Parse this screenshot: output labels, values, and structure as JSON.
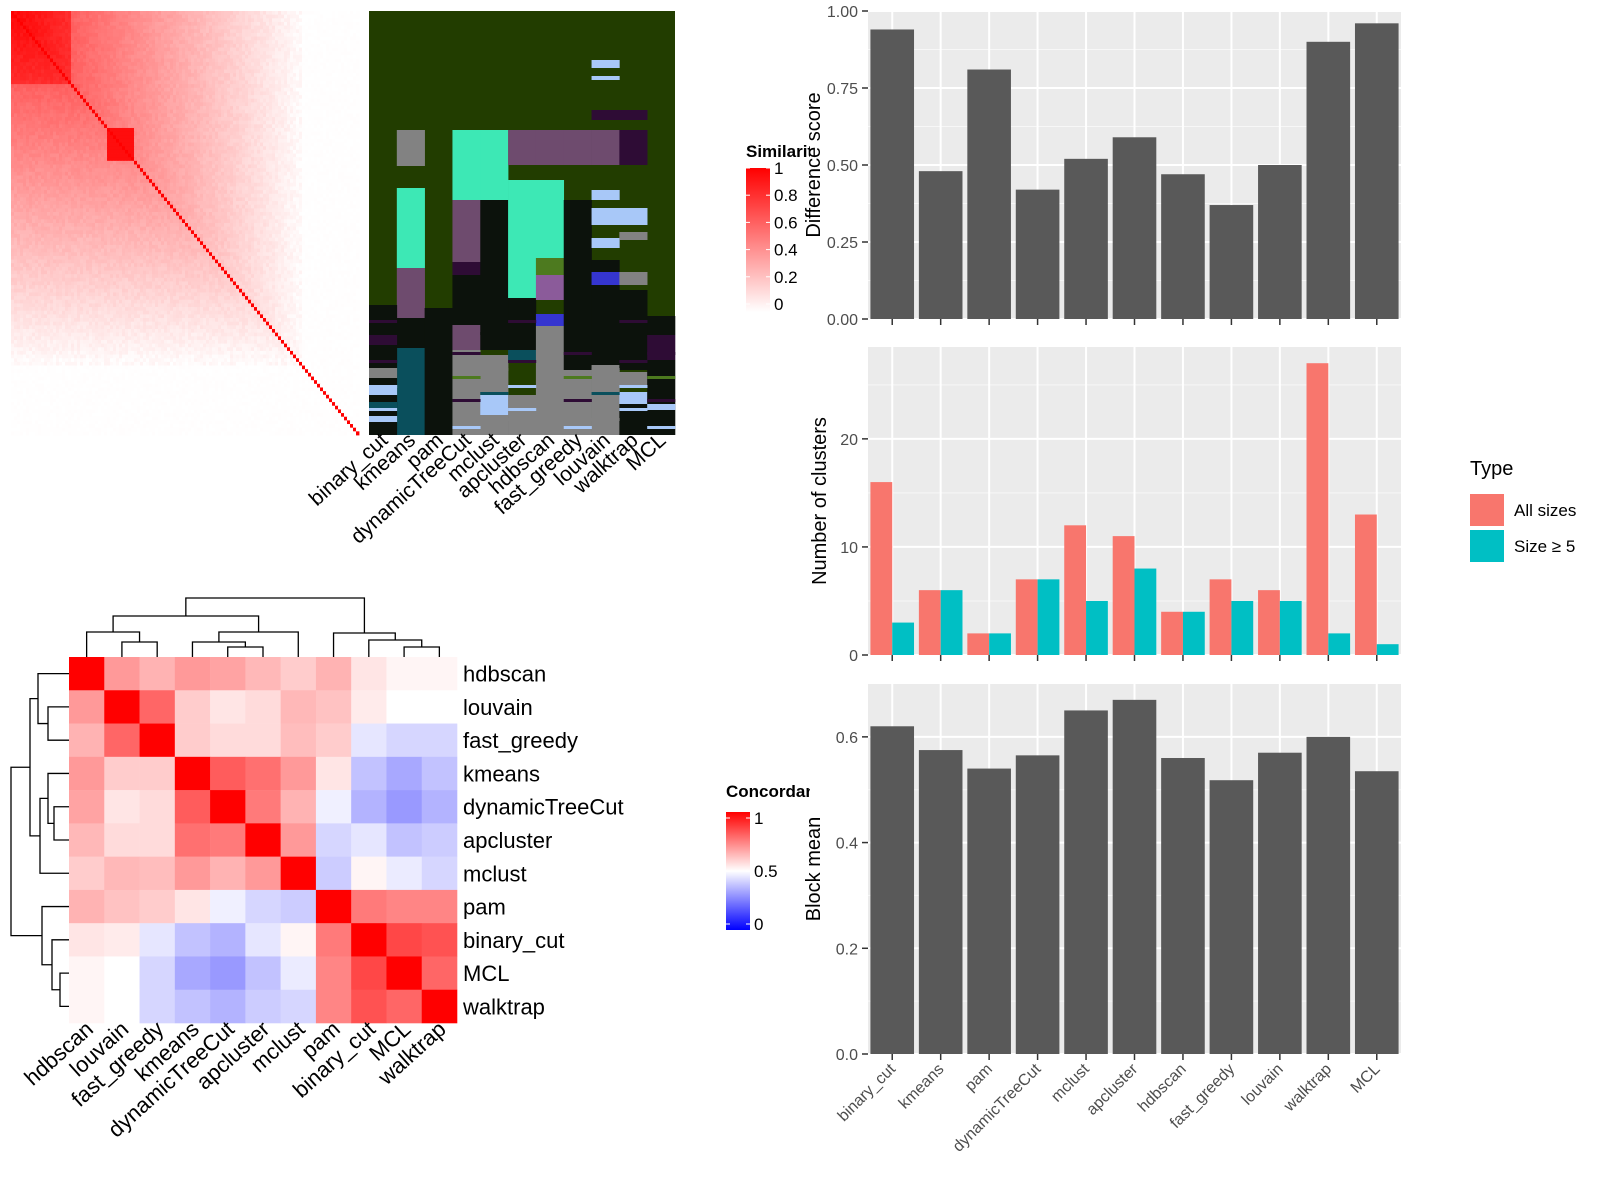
{
  "methods_order": [
    "binary_cut",
    "kmeans",
    "pam",
    "dynamicTreeCut",
    "mclust",
    "apcluster",
    "hdbscan",
    "fast_greedy",
    "louvain",
    "walktrap",
    "MCL"
  ],
  "similarity_legend": {
    "title": "Similarity",
    "ticks": [
      "1",
      "0.8",
      "0.6",
      "0.4",
      "0.2",
      "0"
    ],
    "colors": {
      "high": "#ff0000",
      "low": "#ffffff"
    }
  },
  "concordance_legend": {
    "title": "Concordance",
    "ticks": [
      "1",
      "0.5",
      "0"
    ],
    "colors": {
      "high": "#ff0000",
      "mid": "#ffffff",
      "low": "#0000ff"
    }
  },
  "heatmap_colors": {
    "background": "#223d00",
    "light_blue": "#a8c8f8",
    "mint": "#3de8b5",
    "purple": "#6e4b6e",
    "dark_purple": "#2e0c35",
    "teal": "#0a4f5c",
    "gray": "#828282",
    "black": "#0c120c",
    "olive": "#4d7a1f",
    "violet": "#8b5b9a",
    "blue": "#3535d0"
  },
  "chart_data": [
    {
      "type": "heatmap",
      "name": "concordance",
      "rows": [
        "hdbscan",
        "louvain",
        "fast_greedy",
        "kmeans",
        "dynamicTreeCut",
        "apcluster",
        "mclust",
        "pam",
        "binary_cut",
        "MCL",
        "walktrap"
      ],
      "columns": [
        "hdbscan",
        "louvain",
        "fast_greedy",
        "kmeans",
        "dynamicTreeCut",
        "apcluster",
        "mclust",
        "pam",
        "binary_cut",
        "MCL",
        "walktrap"
      ],
      "values": [
        [
          1.0,
          0.7,
          0.65,
          0.7,
          0.68,
          0.64,
          0.6,
          0.65,
          0.55,
          0.52,
          0.52
        ],
        [
          0.7,
          1.0,
          0.8,
          0.6,
          0.55,
          0.57,
          0.64,
          0.62,
          0.54,
          0.5,
          0.5
        ],
        [
          0.65,
          0.8,
          1.0,
          0.6,
          0.57,
          0.57,
          0.63,
          0.6,
          0.45,
          0.42,
          0.42
        ],
        [
          0.7,
          0.6,
          0.6,
          1.0,
          0.82,
          0.78,
          0.7,
          0.55,
          0.38,
          0.33,
          0.38
        ],
        [
          0.68,
          0.55,
          0.57,
          0.82,
          1.0,
          0.76,
          0.65,
          0.47,
          0.35,
          0.3,
          0.35
        ],
        [
          0.64,
          0.57,
          0.57,
          0.78,
          0.76,
          1.0,
          0.7,
          0.42,
          0.45,
          0.38,
          0.4
        ],
        [
          0.6,
          0.64,
          0.63,
          0.7,
          0.65,
          0.7,
          1.0,
          0.4,
          0.52,
          0.46,
          0.42
        ],
        [
          0.65,
          0.62,
          0.6,
          0.55,
          0.47,
          0.42,
          0.4,
          1.0,
          0.76,
          0.74,
          0.74
        ],
        [
          0.55,
          0.54,
          0.45,
          0.38,
          0.35,
          0.45,
          0.52,
          0.76,
          1.0,
          0.86,
          0.84
        ],
        [
          0.52,
          0.5,
          0.42,
          0.33,
          0.3,
          0.38,
          0.46,
          0.74,
          0.86,
          1.0,
          0.8
        ],
        [
          0.52,
          0.5,
          0.42,
          0.38,
          0.35,
          0.4,
          0.42,
          0.74,
          0.84,
          0.8,
          1.0
        ]
      ],
      "scale": [
        0,
        1
      ]
    },
    {
      "type": "bar",
      "name": "difference-score",
      "categories": [
        "binary_cut",
        "kmeans",
        "pam",
        "dynamicTreeCut",
        "mclust",
        "apcluster",
        "hdbscan",
        "fast_greedy",
        "louvain",
        "walktrap",
        "MCL"
      ],
      "values": [
        0.94,
        0.48,
        0.81,
        0.42,
        0.52,
        0.59,
        0.47,
        0.37,
        0.5,
        0.9,
        0.96
      ],
      "ylabel": "Difference score",
      "ylim": [
        0,
        1
      ],
      "yticks": [
        "0.00",
        "0.25",
        "0.50",
        "0.75",
        "1.00"
      ],
      "bar_color": "#595959"
    },
    {
      "type": "bar",
      "name": "number-of-clusters",
      "categories": [
        "binary_cut",
        "kmeans",
        "pam",
        "dynamicTreeCut",
        "mclust",
        "apcluster",
        "hdbscan",
        "fast_greedy",
        "louvain",
        "walktrap",
        "MCL"
      ],
      "series": [
        {
          "name": "All sizes",
          "color": "#f8766d",
          "values": [
            16,
            6,
            2,
            7,
            12,
            11,
            4,
            7,
            6,
            27,
            13
          ]
        },
        {
          "name": "Size ≥ 5",
          "color": "#00bfc4",
          "values": [
            3,
            6,
            2,
            7,
            5,
            8,
            4,
            5,
            5,
            2,
            1
          ]
        }
      ],
      "ylabel": "Number of clusters",
      "ylim": [
        0,
        28.5
      ],
      "yticks": [
        "0",
        "10",
        "20"
      ],
      "legend_title": "Type",
      "legend_position": "right"
    },
    {
      "type": "bar",
      "name": "block-mean",
      "categories": [
        "binary_cut",
        "kmeans",
        "pam",
        "dynamicTreeCut",
        "mclust",
        "apcluster",
        "hdbscan",
        "fast_greedy",
        "louvain",
        "walktrap",
        "MCL"
      ],
      "values": [
        0.62,
        0.575,
        0.54,
        0.565,
        0.65,
        0.67,
        0.56,
        0.518,
        0.57,
        0.6,
        0.535
      ],
      "ylabel": "Block mean",
      "ylim": [
        0,
        0.7
      ],
      "yticks": [
        "0.0",
        "0.2",
        "0.4",
        "0.6"
      ],
      "bar_color": "#595959"
    }
  ]
}
